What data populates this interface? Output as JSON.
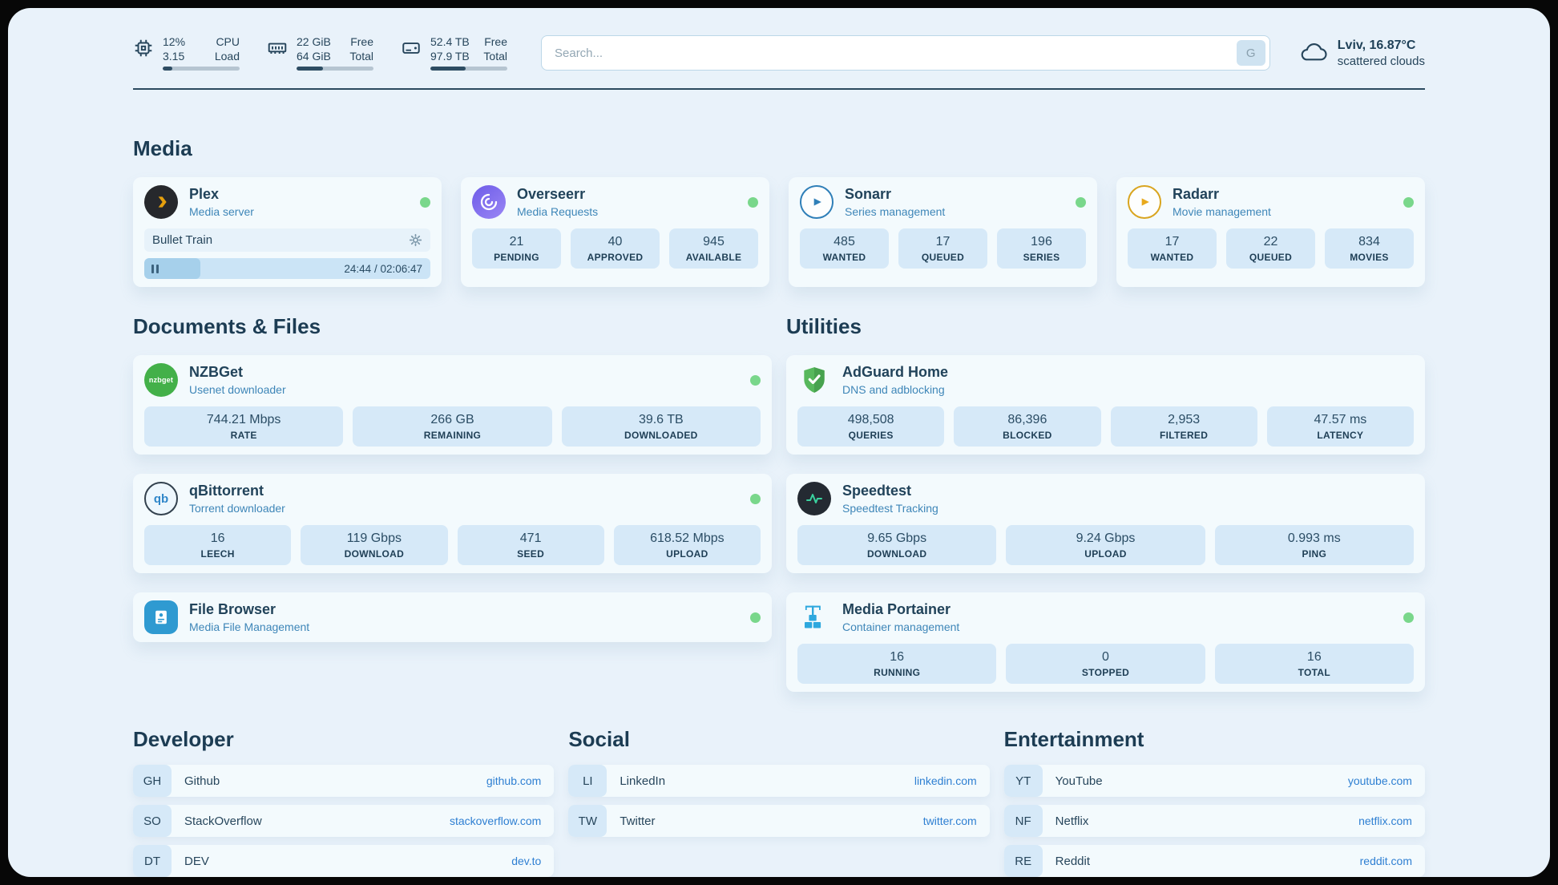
{
  "colors": {
    "page_bg": "#e9f2fa",
    "card_bg": "#f3fafd",
    "stat_bg": "#d6e9f8",
    "text_primary": "#21435a",
    "text_accent": "#3e86b8",
    "link": "#2e7fd2",
    "status_online": "#79d78b"
  },
  "header": {
    "cpu": {
      "icon": "cpu-chip-icon",
      "value_top": "12%",
      "label_top": "CPU",
      "value_bottom": "3.15",
      "label_bottom": "Load",
      "bar_pct": 12
    },
    "memory": {
      "icon": "memory-icon",
      "value_top": "22 GiB",
      "label_top": "Free",
      "value_bottom": "64 GiB",
      "label_bottom": "Total",
      "bar_pct": 34
    },
    "disk": {
      "icon": "disk-icon",
      "value_top": "52.4 TB",
      "label_top": "Free",
      "value_bottom": "97.9 TB",
      "label_bottom": "Total",
      "bar_pct": 46
    },
    "search": {
      "placeholder": "Search...",
      "button_label": "G"
    },
    "weather": {
      "icon": "cloud-icon",
      "location": "Lviv, 16.87°C",
      "condition": "scattered clouds"
    }
  },
  "media": {
    "title": "Media",
    "cards": [
      {
        "name": "Plex",
        "desc": "Media server",
        "icon": "plex-icon",
        "status": "online",
        "player": {
          "title": "Bullet Train",
          "time": "24:44 / 02:06:47",
          "progress_pct": 19.5
        }
      },
      {
        "name": "Overseerr",
        "desc": "Media Requests",
        "icon": "overseerr-icon",
        "status": "online",
        "stats": [
          {
            "value": "21",
            "label": "PENDING"
          },
          {
            "value": "40",
            "label": "APPROVED"
          },
          {
            "value": "945",
            "label": "AVAILABLE"
          }
        ]
      },
      {
        "name": "Sonarr",
        "desc": "Series management",
        "icon": "sonarr-icon",
        "status": "online",
        "stats": [
          {
            "value": "485",
            "label": "WANTED"
          },
          {
            "value": "17",
            "label": "QUEUED"
          },
          {
            "value": "196",
            "label": "SERIES"
          }
        ]
      },
      {
        "name": "Radarr",
        "desc": "Movie management",
        "icon": "radarr-icon",
        "status": "online",
        "stats": [
          {
            "value": "17",
            "label": "WANTED"
          },
          {
            "value": "22",
            "label": "QUEUED"
          },
          {
            "value": "834",
            "label": "MOVIES"
          }
        ]
      }
    ]
  },
  "documents": {
    "title": "Documents & Files",
    "cards": [
      {
        "name": "NZBGet",
        "desc": "Usenet downloader",
        "icon": "nzbget-icon",
        "status": "online",
        "stats": [
          {
            "value": "744.21 Mbps",
            "label": "RATE"
          },
          {
            "value": "266 GB",
            "label": "REMAINING"
          },
          {
            "value": "39.6 TB",
            "label": "DOWNLOADED"
          }
        ]
      },
      {
        "name": "qBittorrent",
        "desc": "Torrent downloader",
        "icon": "qbittorrent-icon",
        "status": "online",
        "stats": [
          {
            "value": "16",
            "label": "LEECH"
          },
          {
            "value": "119 Gbps",
            "label": "DOWNLOAD"
          },
          {
            "value": "471",
            "label": "SEED"
          },
          {
            "value": "618.52 Mbps",
            "label": "UPLOAD"
          }
        ]
      },
      {
        "name": "File Browser",
        "desc": "Media File Management",
        "icon": "filebrowser-icon",
        "status": "online",
        "stats": []
      }
    ]
  },
  "utilities": {
    "title": "Utilities",
    "cards": [
      {
        "name": "AdGuard Home",
        "desc": "DNS and adblocking",
        "icon": "adguard-shield-icon",
        "stats": [
          {
            "value": "498,508",
            "label": "QUERIES"
          },
          {
            "value": "86,396",
            "label": "BLOCKED"
          },
          {
            "value": "2,953",
            "label": "FILTERED"
          },
          {
            "value": "47.57 ms",
            "label": "LATENCY"
          }
        ]
      },
      {
        "name": "Speedtest",
        "desc": "Speedtest Tracking",
        "icon": "speedtest-icon",
        "stats": [
          {
            "value": "9.65 Gbps",
            "label": "DOWNLOAD"
          },
          {
            "value": "9.24 Gbps",
            "label": "UPLOAD"
          },
          {
            "value": "0.993 ms",
            "label": "PING"
          }
        ]
      },
      {
        "name": "Media Portainer",
        "desc": "Container management",
        "icon": "portainer-icon",
        "status": "online",
        "stats": [
          {
            "value": "16",
            "label": "RUNNING"
          },
          {
            "value": "0",
            "label": "STOPPED"
          },
          {
            "value": "16",
            "label": "TOTAL"
          }
        ]
      }
    ]
  },
  "bookmarks": [
    {
      "title": "Developer",
      "items": [
        {
          "abbr": "GH",
          "name": "Github",
          "url": "github.com"
        },
        {
          "abbr": "SO",
          "name": "StackOverflow",
          "url": "stackoverflow.com"
        },
        {
          "abbr": "DT",
          "name": "DEV",
          "url": "dev.to"
        }
      ]
    },
    {
      "title": "Social",
      "items": [
        {
          "abbr": "LI",
          "name": "LinkedIn",
          "url": "linkedin.com"
        },
        {
          "abbr": "TW",
          "name": "Twitter",
          "url": "twitter.com"
        }
      ]
    },
    {
      "title": "Entertainment",
      "items": [
        {
          "abbr": "YT",
          "name": "YouTube",
          "url": "youtube.com"
        },
        {
          "abbr": "NF",
          "name": "Netflix",
          "url": "netflix.com"
        },
        {
          "abbr": "RE",
          "name": "Reddit",
          "url": "reddit.com"
        }
      ]
    }
  ]
}
